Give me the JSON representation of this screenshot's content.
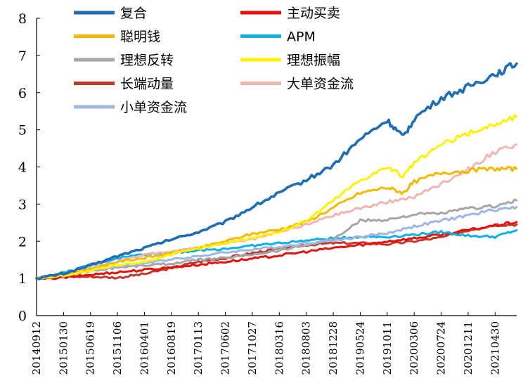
{
  "chart_data": {
    "type": "line",
    "title": "",
    "xlabel": "",
    "ylabel": "",
    "ylim": [
      0,
      8
    ],
    "yticks": [
      0,
      1,
      2,
      3,
      4,
      5,
      6,
      7,
      8
    ],
    "x_tick_labels": [
      "20140912",
      "20150130",
      "20150619",
      "20151106",
      "20160401",
      "20160819",
      "20170113",
      "20170602",
      "20171027",
      "20180316",
      "20180803",
      "20181228",
      "20190524",
      "20191011",
      "20200306",
      "20200724",
      "20201211",
      "20210430"
    ],
    "grid": false,
    "legend_position": "top-left",
    "series": [
      {
        "name": "复合",
        "color": "#1F6DB4",
        "points": [
          [
            0,
            1.0
          ],
          [
            1,
            1.13
          ],
          [
            2,
            1.35
          ],
          [
            3,
            1.6
          ],
          [
            4,
            1.82
          ],
          [
            5,
            2.05
          ],
          [
            6,
            2.25
          ],
          [
            7,
            2.52
          ],
          [
            8,
            2.92
          ],
          [
            9,
            3.3
          ],
          [
            10,
            3.65
          ],
          [
            11,
            4.05
          ],
          [
            12,
            4.75
          ],
          [
            13,
            5.25
          ],
          [
            13.6,
            4.8
          ],
          [
            14,
            5.3
          ],
          [
            15,
            5.85
          ],
          [
            16,
            6.15
          ],
          [
            17,
            6.5
          ],
          [
            17.8,
            6.78
          ]
        ]
      },
      {
        "name": "主动买卖",
        "color": "#E8120C",
        "points": [
          [
            0,
            1.0
          ],
          [
            1,
            1.02
          ],
          [
            2,
            1.1
          ],
          [
            3,
            1.17
          ],
          [
            4,
            1.23
          ],
          [
            5,
            1.3
          ],
          [
            6,
            1.37
          ],
          [
            7,
            1.45
          ],
          [
            8,
            1.53
          ],
          [
            9,
            1.62
          ],
          [
            10,
            1.72
          ],
          [
            11,
            1.82
          ],
          [
            12,
            1.9
          ],
          [
            13,
            2.0
          ],
          [
            14,
            2.08
          ],
          [
            15,
            2.18
          ],
          [
            16,
            2.3
          ],
          [
            17,
            2.42
          ],
          [
            17.8,
            2.52
          ]
        ]
      },
      {
        "name": "聪明钱",
        "color": "#F5B800",
        "points": [
          [
            0,
            1.0
          ],
          [
            1,
            1.12
          ],
          [
            2,
            1.25
          ],
          [
            3,
            1.45
          ],
          [
            4,
            1.55
          ],
          [
            5,
            1.68
          ],
          [
            6,
            1.82
          ],
          [
            7,
            2.0
          ],
          [
            8,
            2.2
          ],
          [
            9,
            2.32
          ],
          [
            10,
            2.52
          ],
          [
            11,
            2.9
          ],
          [
            12,
            3.3
          ],
          [
            13,
            3.45
          ],
          [
            13.6,
            3.3
          ],
          [
            14,
            3.6
          ],
          [
            15,
            3.85
          ],
          [
            16,
            3.9
          ],
          [
            17,
            3.95
          ],
          [
            17.8,
            3.95
          ]
        ]
      },
      {
        "name": "APM",
        "color": "#12AEEA",
        "points": [
          [
            0,
            1.0
          ],
          [
            1,
            1.15
          ],
          [
            2,
            1.35
          ],
          [
            3,
            1.55
          ],
          [
            4,
            1.65
          ],
          [
            5,
            1.7
          ],
          [
            6,
            1.75
          ],
          [
            7,
            1.8
          ],
          [
            8,
            1.88
          ],
          [
            9,
            1.95
          ],
          [
            10,
            2.02
          ],
          [
            11,
            2.08
          ],
          [
            12,
            2.12
          ],
          [
            13,
            2.12
          ],
          [
            14,
            2.18
          ],
          [
            15,
            2.25
          ],
          [
            16,
            2.15
          ],
          [
            17,
            2.12
          ],
          [
            17.8,
            2.3
          ]
        ]
      },
      {
        "name": "理想反转",
        "color": "#A6A6A6",
        "points": [
          [
            0,
            1.0
          ],
          [
            1,
            1.1
          ],
          [
            2,
            1.2
          ],
          [
            3,
            1.3
          ],
          [
            4,
            1.35
          ],
          [
            5,
            1.4
          ],
          [
            6,
            1.5
          ],
          [
            7,
            1.55
          ],
          [
            8,
            1.65
          ],
          [
            9,
            1.75
          ],
          [
            10,
            1.9
          ],
          [
            11,
            2.05
          ],
          [
            12,
            2.55
          ],
          [
            13,
            2.58
          ],
          [
            14,
            2.72
          ],
          [
            15,
            2.75
          ],
          [
            16,
            2.88
          ],
          [
            17,
            2.95
          ],
          [
            17.8,
            3.1
          ]
        ]
      },
      {
        "name": "理想振幅",
        "color": "#FFF200",
        "points": [
          [
            0,
            1.0
          ],
          [
            1,
            1.08
          ],
          [
            2,
            1.2
          ],
          [
            3,
            1.35
          ],
          [
            4,
            1.45
          ],
          [
            5,
            1.65
          ],
          [
            6,
            1.8
          ],
          [
            7,
            1.95
          ],
          [
            8,
            2.1
          ],
          [
            9,
            2.25
          ],
          [
            10,
            2.55
          ],
          [
            11,
            3.1
          ],
          [
            12,
            3.65
          ],
          [
            13,
            4.0
          ],
          [
            13.6,
            3.75
          ],
          [
            14,
            4.1
          ],
          [
            15,
            4.6
          ],
          [
            16,
            4.9
          ],
          [
            17,
            5.15
          ],
          [
            17.8,
            5.35
          ]
        ]
      },
      {
        "name": "长端动量",
        "color": "#C0392B",
        "points": [
          [
            0,
            1.0
          ],
          [
            1,
            1.05
          ],
          [
            2,
            1.05
          ],
          [
            3,
            1.02
          ],
          [
            4,
            1.12
          ],
          [
            5,
            1.28
          ],
          [
            6,
            1.45
          ],
          [
            7,
            1.55
          ],
          [
            8,
            1.68
          ],
          [
            9,
            1.8
          ],
          [
            10,
            1.9
          ],
          [
            11,
            1.95
          ],
          [
            12,
            1.95
          ],
          [
            13,
            1.92
          ],
          [
            14,
            2.0
          ],
          [
            15,
            2.1
          ],
          [
            16,
            2.3
          ],
          [
            17,
            2.45
          ],
          [
            17.8,
            2.45
          ]
        ]
      },
      {
        "name": "大单资金流",
        "color": "#F0B6AF",
        "points": [
          [
            0,
            1.0
          ],
          [
            1,
            1.12
          ],
          [
            2,
            1.28
          ],
          [
            3,
            1.45
          ],
          [
            4,
            1.65
          ],
          [
            5,
            1.72
          ],
          [
            6,
            1.82
          ],
          [
            7,
            1.95
          ],
          [
            8,
            2.05
          ],
          [
            9,
            2.25
          ],
          [
            10,
            2.45
          ],
          [
            11,
            2.7
          ],
          [
            12,
            2.9
          ],
          [
            13,
            3.05
          ],
          [
            14,
            3.2
          ],
          [
            15,
            3.55
          ],
          [
            16,
            3.95
          ],
          [
            17,
            4.4
          ],
          [
            17.8,
            4.6
          ]
        ]
      },
      {
        "name": "小单资金流",
        "color": "#9DB7E0",
        "points": [
          [
            0,
            1.0
          ],
          [
            1,
            1.1
          ],
          [
            2,
            1.22
          ],
          [
            3,
            1.32
          ],
          [
            4,
            1.4
          ],
          [
            5,
            1.52
          ],
          [
            6,
            1.6
          ],
          [
            7,
            1.7
          ],
          [
            8,
            1.78
          ],
          [
            9,
            1.85
          ],
          [
            10,
            1.95
          ],
          [
            11,
            2.02
          ],
          [
            12,
            2.12
          ],
          [
            13,
            2.22
          ],
          [
            14,
            2.4
          ],
          [
            15,
            2.55
          ],
          [
            16,
            2.7
          ],
          [
            17,
            2.85
          ],
          [
            17.8,
            2.92
          ]
        ]
      }
    ]
  }
}
